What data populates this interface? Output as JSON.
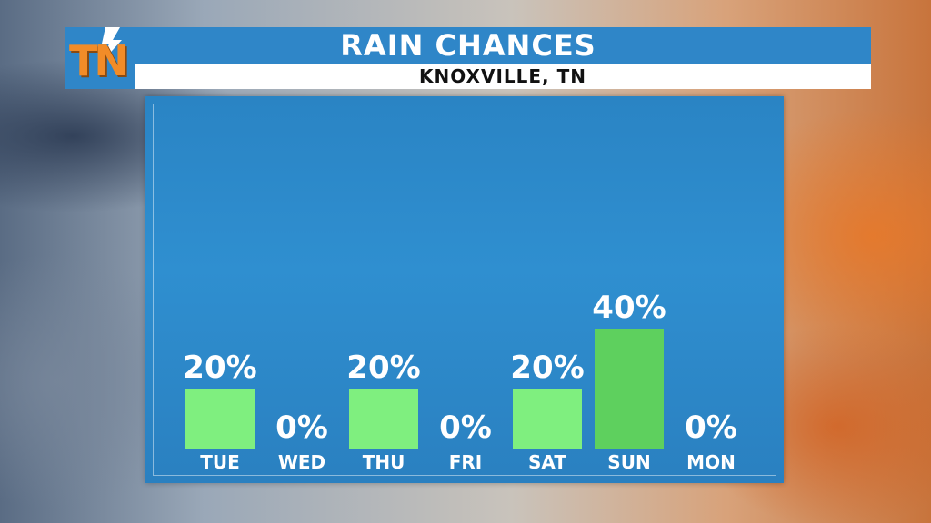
{
  "logo": {
    "text": "TN"
  },
  "chart_data": {
    "type": "bar",
    "title": "RAIN CHANCES",
    "subtitle": "KNOXVILLE, TN",
    "categories": [
      "TUE",
      "WED",
      "THU",
      "FRI",
      "SAT",
      "SUN",
      "MON"
    ],
    "values": [
      20,
      0,
      20,
      0,
      20,
      40,
      0
    ],
    "value_labels": [
      "20%",
      "0%",
      "20%",
      "0%",
      "20%",
      "40%",
      "0%"
    ],
    "unit": "%",
    "ylim": [
      0,
      100
    ],
    "grid": false,
    "colors": {
      "bar": "#7fef7f",
      "bar_highlight": "#5ed05e",
      "panel": "#2f8fd0",
      "header": "#2f86c8",
      "logo": "#f28c28"
    }
  }
}
